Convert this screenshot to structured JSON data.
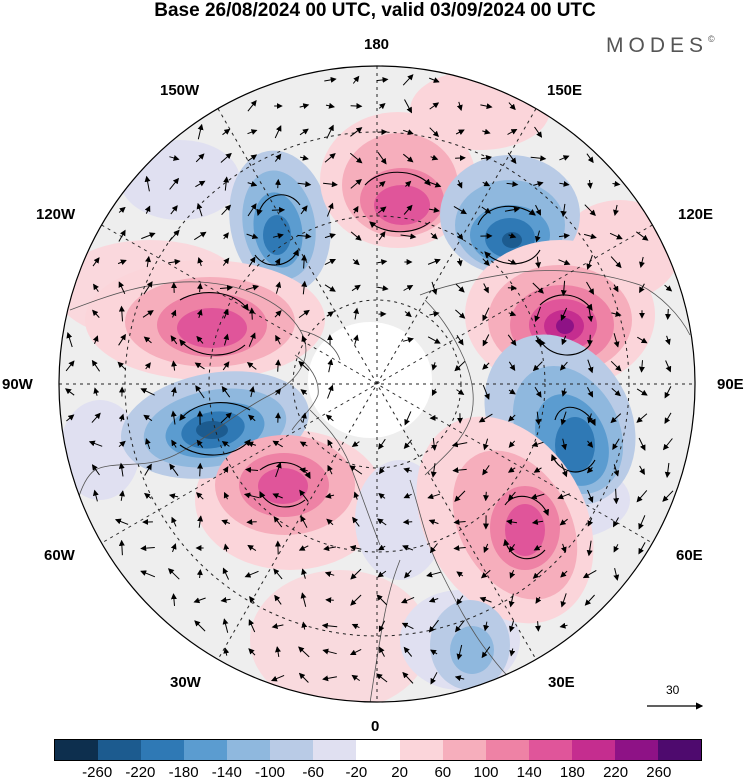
{
  "title": "Base 26/08/2024 00 UTC, valid 03/09/2024 00 UTC",
  "brand": "MODES",
  "brand_mark": "©",
  "longitude_labels": [
    "180",
    "150E",
    "120E",
    "90E",
    "60E",
    "30E",
    "0",
    "30W",
    "60W",
    "90W",
    "120W",
    "150W"
  ],
  "vector_scale_label": "30",
  "colorbar": {
    "colors": [
      "#0d2f4e",
      "#1c5b8f",
      "#2f79b5",
      "#5b9cd0",
      "#8fb8de",
      "#b9cbe6",
      "#e0e0f1",
      "#ffffff",
      "#fbd5da",
      "#f6aebc",
      "#ee82a5",
      "#e0559a",
      "#c52d8f",
      "#8e1286",
      "#4e0a6e"
    ],
    "tick_labels": [
      "-260",
      "-220",
      "-180",
      "-140",
      "-100",
      "-60",
      "-20",
      "20",
      "60",
      "100",
      "140",
      "180",
      "220",
      "260"
    ]
  },
  "anomalies": [
    {
      "sign": "negative",
      "level": 180,
      "location": "near 150W-120W"
    },
    {
      "sign": "positive",
      "level": 140,
      "location": "near 180"
    },
    {
      "sign": "negative",
      "level": 180,
      "location": "near 135E"
    },
    {
      "sign": "positive",
      "level": 240,
      "location": "near 105E"
    },
    {
      "sign": "positive",
      "level": 160,
      "location": "near 105W"
    },
    {
      "sign": "negative",
      "level": 200,
      "location": "near 85W"
    },
    {
      "sign": "positive",
      "level": 140,
      "location": "near 55W"
    },
    {
      "sign": "negative",
      "level": 180,
      "location": "near 80E"
    },
    {
      "sign": "positive",
      "level": 160,
      "location": "near 50E"
    },
    {
      "sign": "negative",
      "level": 60,
      "location": "near 25E"
    }
  ]
}
